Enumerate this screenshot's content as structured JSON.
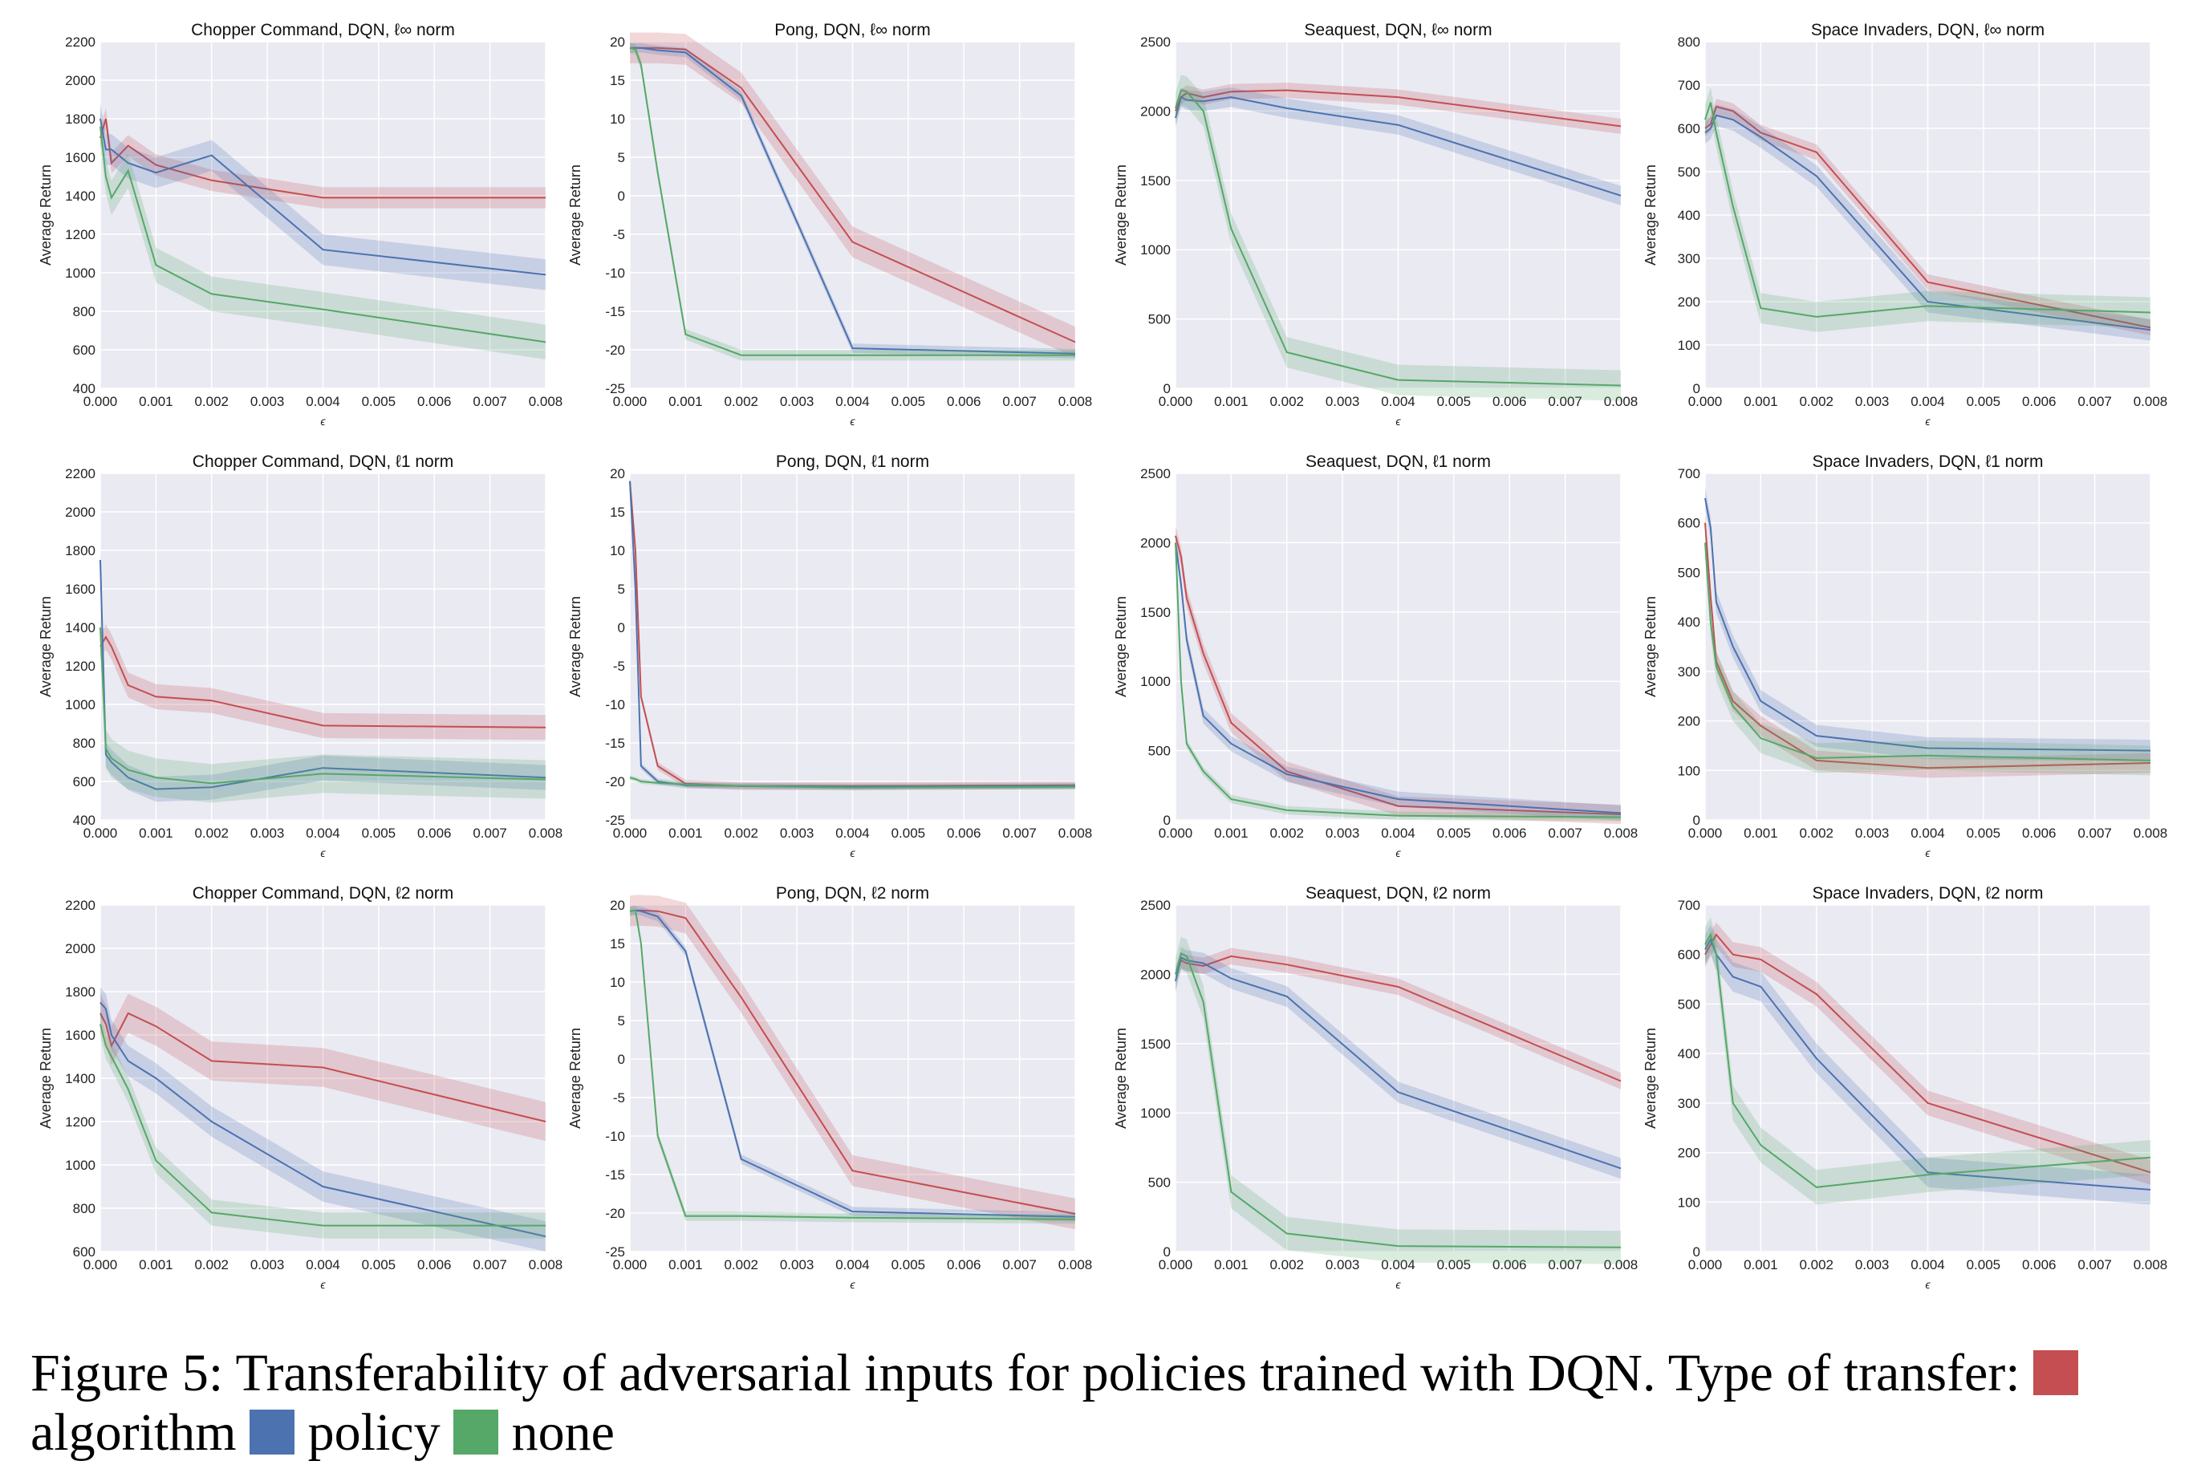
{
  "figure": {
    "caption_prefix": "Figure 5: Transferability of adversarial inputs for policies trained with DQN. Type of transfer:",
    "legend": [
      {
        "key": "algorithm",
        "label": "algorithm",
        "color": "#c44e52"
      },
      {
        "key": "policy",
        "label": "policy",
        "color": "#4c72b0"
      },
      {
        "key": "none",
        "label": "none",
        "color": "#55a868"
      }
    ]
  },
  "chart_data": [
    {
      "type": "line",
      "title": "Chopper Command, DQN, ℓ∞ norm",
      "xlabel": "ϵ",
      "ylabel": "Average Return",
      "xlim": [
        0,
        0.008
      ],
      "ylim": [
        400,
        2200
      ],
      "yticks": [
        400,
        600,
        800,
        1000,
        1200,
        1400,
        1600,
        1800,
        2000,
        2200
      ],
      "x": [
        0,
        0.0001,
        0.0002,
        0.0005,
        0.001,
        0.002,
        0.004,
        0.008
      ],
      "series": [
        {
          "name": "algorithm",
          "values": [
            1700,
            1800,
            1570,
            1660,
            1560,
            1480,
            1390,
            1390
          ],
          "band": 55
        },
        {
          "name": "policy",
          "values": [
            1800,
            1640,
            1640,
            1570,
            1520,
            1610,
            1120,
            990
          ],
          "band": 80
        },
        {
          "name": "none",
          "values": [
            1760,
            1500,
            1390,
            1530,
            1040,
            890,
            810,
            640
          ],
          "band": 90
        }
      ]
    },
    {
      "type": "line",
      "title": "Pong, DQN, ℓ∞ norm",
      "xlabel": "ϵ",
      "ylabel": "Average Return",
      "xlim": [
        0,
        0.008
      ],
      "ylim": [
        -25,
        20
      ],
      "yticks": [
        -25,
        -20,
        -15,
        -10,
        -5,
        0,
        5,
        10,
        15,
        20
      ],
      "x": [
        0,
        0.0001,
        0.0002,
        0.0005,
        0.001,
        0.002,
        0.004,
        0.008
      ],
      "series": [
        {
          "name": "algorithm",
          "values": [
            19.2,
            19.2,
            19.2,
            19.2,
            19.0,
            14,
            -6,
            -19
          ],
          "band": 2.0
        },
        {
          "name": "policy",
          "values": [
            19.2,
            19.2,
            19.2,
            18.9,
            18.6,
            13,
            -19.8,
            -20.5
          ],
          "band": 0.6
        },
        {
          "name": "none",
          "values": [
            19.2,
            19.0,
            17,
            3,
            -18,
            -20.7,
            -20.7,
            -20.7
          ],
          "band": 0.7
        }
      ]
    },
    {
      "type": "line",
      "title": "Seaquest, DQN, ℓ∞ norm",
      "xlabel": "ϵ",
      "ylabel": "Average Return",
      "xlim": [
        0,
        0.008
      ],
      "ylim": [
        0,
        2500
      ],
      "yticks": [
        0,
        500,
        1000,
        1500,
        2000,
        2500
      ],
      "x": [
        0,
        0.0001,
        0.0002,
        0.0005,
        0.001,
        0.002,
        0.004,
        0.008
      ],
      "series": [
        {
          "name": "algorithm",
          "values": [
            2000,
            2100,
            2130,
            2100,
            2140,
            2150,
            2100,
            1890
          ],
          "band": 55
        },
        {
          "name": "policy",
          "values": [
            1950,
            2100,
            2080,
            2070,
            2100,
            2020,
            1900,
            1390
          ],
          "band": 70
        },
        {
          "name": "none",
          "values": [
            2020,
            2150,
            2140,
            2000,
            1150,
            260,
            60,
            20
          ],
          "band": 110
        }
      ]
    },
    {
      "type": "line",
      "title": "Space Invaders, DQN, ℓ∞ norm",
      "xlabel": "ϵ",
      "ylabel": "Average Return",
      "xlim": [
        0,
        0.008
      ],
      "ylim": [
        0,
        800
      ],
      "yticks": [
        0,
        100,
        200,
        300,
        400,
        500,
        600,
        700,
        800
      ],
      "x": [
        0,
        0.0001,
        0.0002,
        0.0005,
        0.001,
        0.002,
        0.004,
        0.008
      ],
      "series": [
        {
          "name": "algorithm",
          "values": [
            600,
            610,
            650,
            640,
            590,
            545,
            245,
            140
          ],
          "band": 18
        },
        {
          "name": "policy",
          "values": [
            590,
            600,
            630,
            620,
            580,
            490,
            200,
            135
          ],
          "band": 25
        },
        {
          "name": "none",
          "values": [
            620,
            660,
            590,
            420,
            185,
            165,
            190,
            175
          ],
          "band": 35
        }
      ]
    },
    {
      "type": "line",
      "title": "Chopper Command, DQN, ℓ1 norm",
      "xlabel": "ϵ",
      "ylabel": "Average Return",
      "xlim": [
        0,
        0.008
      ],
      "ylim": [
        400,
        2200
      ],
      "yticks": [
        400,
        600,
        800,
        1000,
        1200,
        1400,
        1600,
        1800,
        2000,
        2200
      ],
      "x": [
        0,
        0.0001,
        0.0002,
        0.0005,
        0.001,
        0.002,
        0.004,
        0.008
      ],
      "series": [
        {
          "name": "algorithm",
          "values": [
            1300,
            1350,
            1300,
            1100,
            1040,
            1020,
            890,
            880
          ],
          "band": 65
        },
        {
          "name": "policy",
          "values": [
            1750,
            740,
            700,
            620,
            560,
            570,
            670,
            620
          ],
          "band": 65
        },
        {
          "name": "none",
          "values": [
            1400,
            770,
            720,
            660,
            620,
            590,
            640,
            610
          ],
          "band": 100
        }
      ]
    },
    {
      "type": "line",
      "title": "Pong, DQN, ℓ1 norm",
      "xlabel": "ϵ",
      "ylabel": "Average Return",
      "xlim": [
        0,
        0.008
      ],
      "ylim": [
        -25,
        20
      ],
      "yticks": [
        -25,
        -20,
        -15,
        -10,
        -5,
        0,
        5,
        10,
        15,
        20
      ],
      "x": [
        0,
        0.0001,
        0.0002,
        0.0005,
        0.001,
        0.002,
        0.004,
        0.008
      ],
      "series": [
        {
          "name": "algorithm",
          "values": [
            19,
            10,
            -9,
            -18,
            -20.3,
            -20.6,
            -20.6,
            -20.5
          ],
          "band": 0.5
        },
        {
          "name": "policy",
          "values": [
            19,
            5,
            -18,
            -20,
            -20.5,
            -20.6,
            -20.7,
            -20.6
          ],
          "band": 0.4
        },
        {
          "name": "none",
          "values": [
            -19.5,
            -19.7,
            -20,
            -20.2,
            -20.4,
            -20.6,
            -20.8,
            -20.7
          ],
          "band": 0.3
        }
      ]
    },
    {
      "type": "line",
      "title": "Seaquest, DQN, ℓ1 norm",
      "xlabel": "ϵ",
      "ylabel": "Average Return",
      "xlim": [
        0,
        0.008
      ],
      "ylim": [
        0,
        2500
      ],
      "yticks": [
        0,
        500,
        1000,
        1500,
        2000,
        2500
      ],
      "x": [
        0,
        0.0001,
        0.0002,
        0.0005,
        0.001,
        0.002,
        0.004,
        0.008
      ],
      "series": [
        {
          "name": "algorithm",
          "values": [
            2050,
            1900,
            1600,
            1200,
            700,
            350,
            100,
            40
          ],
          "band": 70
        },
        {
          "name": "policy",
          "values": [
            2000,
            1700,
            1300,
            750,
            550,
            330,
            150,
            50
          ],
          "band": 55
        },
        {
          "name": "none",
          "values": [
            2000,
            1000,
            550,
            350,
            150,
            70,
            30,
            20
          ],
          "band": 30
        }
      ]
    },
    {
      "type": "line",
      "title": "Space Invaders, DQN, ℓ1 norm",
      "xlabel": "ϵ",
      "ylabel": "Average Return",
      "xlim": [
        0,
        0.008
      ],
      "ylim": [
        0,
        700
      ],
      "yticks": [
        0,
        100,
        200,
        300,
        400,
        500,
        600,
        700
      ],
      "x": [
        0,
        0.0001,
        0.0002,
        0.0005,
        0.001,
        0.002,
        0.004,
        0.008
      ],
      "series": [
        {
          "name": "algorithm",
          "values": [
            600,
            450,
            320,
            240,
            190,
            120,
            105,
            115
          ],
          "band": 20
        },
        {
          "name": "policy",
          "values": [
            650,
            590,
            440,
            350,
            240,
            170,
            145,
            140
          ],
          "band": 22
        },
        {
          "name": "none",
          "values": [
            560,
            400,
            310,
            230,
            165,
            125,
            130,
            120
          ],
          "band": 30
        }
      ]
    },
    {
      "type": "line",
      "title": "Chopper Command, DQN, ℓ2 norm",
      "xlabel": "ϵ",
      "ylabel": "Average Return",
      "xlim": [
        0,
        0.008
      ],
      "ylim": [
        600,
        2200
      ],
      "yticks": [
        600,
        800,
        1000,
        1200,
        1400,
        1600,
        1800,
        2000,
        2200
      ],
      "x": [
        0,
        0.0001,
        0.0002,
        0.0005,
        0.001,
        0.002,
        0.004,
        0.008
      ],
      "series": [
        {
          "name": "algorithm",
          "values": [
            1700,
            1650,
            1550,
            1700,
            1640,
            1480,
            1450,
            1200
          ],
          "band": 90
        },
        {
          "name": "policy",
          "values": [
            1750,
            1720,
            1600,
            1480,
            1400,
            1200,
            900,
            670
          ],
          "band": 70
        },
        {
          "name": "none",
          "values": [
            1650,
            1550,
            1500,
            1350,
            1020,
            780,
            720,
            720
          ],
          "band": 60
        }
      ]
    },
    {
      "type": "line",
      "title": "Pong, DQN, ℓ2 norm",
      "xlabel": "ϵ",
      "ylabel": "Average Return",
      "xlim": [
        0,
        0.008
      ],
      "ylim": [
        -25,
        20
      ],
      "yticks": [
        -25,
        -20,
        -15,
        -10,
        -5,
        0,
        5,
        10,
        15,
        20
      ],
      "x": [
        0,
        0.0001,
        0.0002,
        0.0005,
        0.001,
        0.002,
        0.004,
        0.008
      ],
      "series": [
        {
          "name": "algorithm",
          "values": [
            19.2,
            19.3,
            19.3,
            19.2,
            18.3,
            8,
            -14.5,
            -20.1
          ],
          "band": 2.0
        },
        {
          "name": "policy",
          "values": [
            19.2,
            19.3,
            19.2,
            18.5,
            14,
            -13,
            -19.8,
            -20.5
          ],
          "band": 0.6
        },
        {
          "name": "none",
          "values": [
            19.2,
            19.3,
            15,
            -10,
            -20.4,
            -20.4,
            -20.6,
            -20.8
          ],
          "band": 0.6
        }
      ]
    },
    {
      "type": "line",
      "title": "Seaquest, DQN, ℓ2 norm",
      "xlabel": "ϵ",
      "ylabel": "Average Return",
      "xlim": [
        0,
        0.008
      ],
      "ylim": [
        0,
        2500
      ],
      "yticks": [
        0,
        500,
        1000,
        1500,
        2000,
        2500
      ],
      "x": [
        0,
        0.0001,
        0.0002,
        0.0005,
        0.001,
        0.002,
        0.004,
        0.008
      ],
      "series": [
        {
          "name": "algorithm",
          "values": [
            2000,
            2100,
            2080,
            2060,
            2130,
            2070,
            1910,
            1230
          ],
          "band": 60
        },
        {
          "name": "policy",
          "values": [
            1950,
            2120,
            2100,
            2080,
            1970,
            1840,
            1150,
            600
          ],
          "band": 75
        },
        {
          "name": "none",
          "values": [
            2000,
            2150,
            2130,
            1800,
            430,
            130,
            40,
            30
          ],
          "band": 120
        }
      ]
    },
    {
      "type": "line",
      "title": "Space Invaders, DQN, ℓ2 norm",
      "xlabel": "ϵ",
      "ylabel": "Average Return",
      "xlim": [
        0,
        0.008
      ],
      "ylim": [
        0,
        700
      ],
      "yticks": [
        0,
        100,
        200,
        300,
        400,
        500,
        600,
        700
      ],
      "x": [
        0,
        0.0001,
        0.0002,
        0.0005,
        0.001,
        0.002,
        0.004,
        0.008
      ],
      "series": [
        {
          "name": "algorithm",
          "values": [
            600,
            620,
            640,
            600,
            590,
            520,
            300,
            160
          ],
          "band": 25
        },
        {
          "name": "policy",
          "values": [
            610,
            630,
            600,
            555,
            535,
            390,
            160,
            125
          ],
          "band": 30
        },
        {
          "name": "none",
          "values": [
            620,
            640,
            600,
            300,
            215,
            130,
            155,
            190
          ],
          "band": 35
        }
      ]
    }
  ]
}
